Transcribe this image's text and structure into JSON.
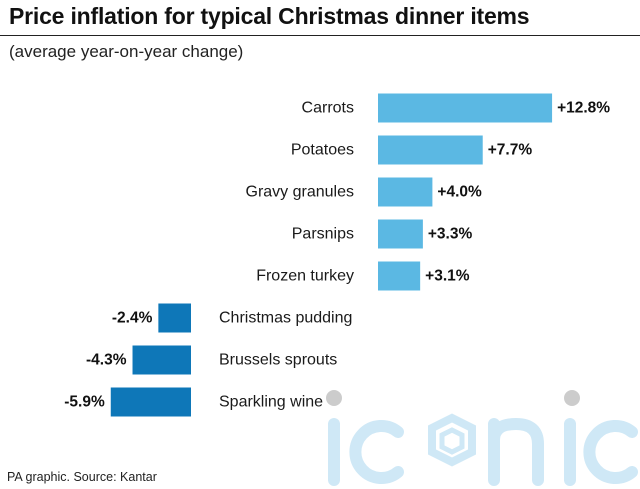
{
  "title": "Price inflation for typical Christmas dinner items",
  "subtitle": "(average year-on-year change)",
  "source": "PA graphic. Source: Kantar",
  "watermark": "iconic",
  "colors": {
    "positive": "#5bb8e3",
    "negative": "#0e77b8",
    "watermark": "#cfe8f6"
  },
  "chart_data": {
    "type": "bar",
    "orientation": "horizontal",
    "title": "Price inflation for typical Christmas dinner items",
    "subtitle": "(average year-on-year change)",
    "unit": "%",
    "categories": [
      "Carrots",
      "Potatoes",
      "Gravy granules",
      "Parsnips",
      "Frozen turkey",
      "Christmas pudding",
      "Brussels sprouts",
      "Sparkling wine"
    ],
    "values": [
      12.8,
      7.7,
      4.0,
      3.3,
      3.1,
      -2.4,
      -4.3,
      -5.9
    ],
    "value_labels": [
      "+12.8%",
      "+7.7%",
      "+4.0%",
      "+3.3%",
      "+3.1%",
      "-2.4%",
      "-4.3%",
      "-5.9%"
    ],
    "grid": false,
    "legend": "none"
  }
}
